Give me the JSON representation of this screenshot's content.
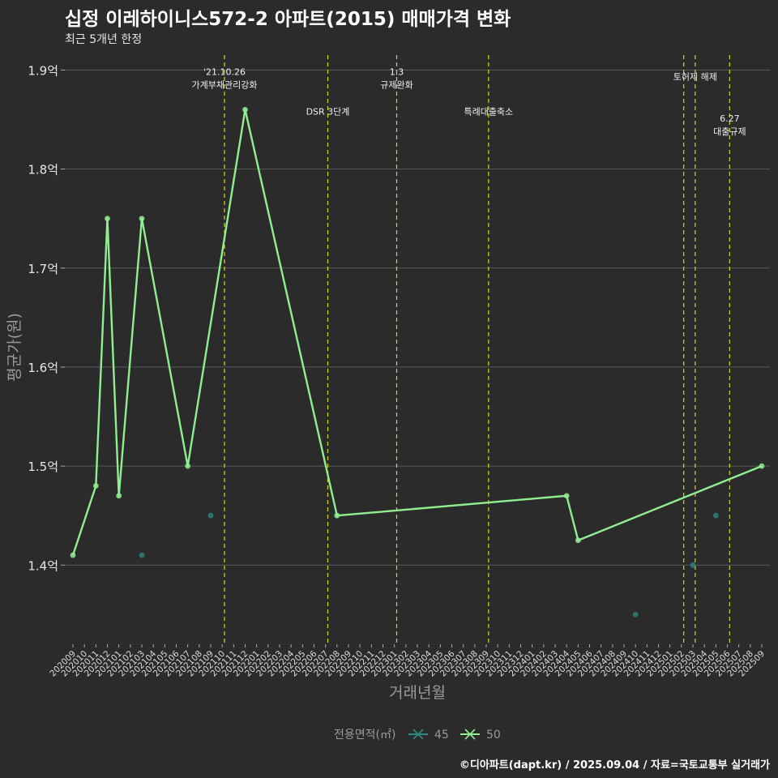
{
  "header": {
    "title": "십정 이레하이니스572-2 아파트(2015) 매매가격 변화",
    "subtitle": "최근 5개년 한정"
  },
  "caption": "©디아파트(dapt.kr) / 2025.09.04 / 자료=국토교통부 실거래가",
  "chart_data": {
    "type": "line",
    "xlabel": "거래년월",
    "ylabel": "평균가(원)",
    "ylim": [
      1.32,
      1.92
    ],
    "yticks": [
      {
        "value": 1.4,
        "label": "1.4억"
      },
      {
        "value": 1.5,
        "label": "1.5억"
      },
      {
        "value": 1.6,
        "label": "1.6억"
      },
      {
        "value": 1.7,
        "label": "1.7억"
      },
      {
        "value": 1.8,
        "label": "1.8억"
      },
      {
        "value": 1.9,
        "label": "1.9억"
      }
    ],
    "categories": [
      "202009",
      "202010",
      "202011",
      "202012",
      "202101",
      "202102",
      "202103",
      "202104",
      "202105",
      "202106",
      "202107",
      "202108",
      "202109",
      "202110",
      "202111",
      "202112",
      "202201",
      "202202",
      "202203",
      "202204",
      "202205",
      "202206",
      "202207",
      "202208",
      "202209",
      "202210",
      "202211",
      "202212",
      "202301",
      "202302",
      "202303",
      "202304",
      "202305",
      "202306",
      "202307",
      "202308",
      "202309",
      "202310",
      "202311",
      "202312",
      "202401",
      "202402",
      "202403",
      "202404",
      "202405",
      "202406",
      "202407",
      "202408",
      "202409",
      "202410",
      "202411",
      "202412",
      "202501",
      "202502",
      "202503",
      "202504",
      "202505",
      "202506",
      "202507",
      "202508",
      "202509"
    ],
    "series": [
      {
        "name": "45",
        "color": "#2e8b84",
        "line": false,
        "points": [
          {
            "x": "202103",
            "y": 1.41
          },
          {
            "x": "202109",
            "y": 1.45
          },
          {
            "x": "202410",
            "y": 1.35
          },
          {
            "x": "202503",
            "y": 1.4
          },
          {
            "x": "202505",
            "y": 1.45
          }
        ]
      },
      {
        "name": "50",
        "color": "#90ee90",
        "line": true,
        "points": [
          {
            "x": "202009",
            "y": 1.41
          },
          {
            "x": "202011",
            "y": 1.48
          },
          {
            "x": "202012",
            "y": 1.75
          },
          {
            "x": "202101",
            "y": 1.47
          },
          {
            "x": "202103",
            "y": 1.75
          },
          {
            "x": "202107",
            "y": 1.5
          },
          {
            "x": "202112",
            "y": 1.86
          },
          {
            "x": "202208",
            "y": 1.45
          },
          {
            "x": "202404",
            "y": 1.47
          },
          {
            "x": "202405",
            "y": 1.425
          },
          {
            "x": "202509",
            "y": 1.5
          }
        ]
      }
    ],
    "events": [
      {
        "x": 13.2,
        "lines": [
          "'21.10.26",
          "가계부채관리강화"
        ],
        "label_y": 1.895
      },
      {
        "x": 22.2,
        "lines": [
          "DSR 3단계"
        ],
        "label_y": 1.855
      },
      {
        "x": 28.2,
        "lines": [
          "1.3",
          "규제완화"
        ],
        "label_y": 1.895
      },
      {
        "x": 36.2,
        "lines": [
          "특례대출축소"
        ],
        "label_y": 1.855
      },
      {
        "x": 53.2,
        "lines": [],
        "label_y": 1.89
      },
      {
        "x": 54.2,
        "lines": [
          "토허제 해제"
        ],
        "label_y": 1.89
      },
      {
        "x": 57.2,
        "lines": [
          "6.27",
          "대출규제"
        ],
        "label_y": 1.848
      }
    ],
    "legend": {
      "title": "전용면적(㎡)",
      "position": "bottom"
    }
  }
}
